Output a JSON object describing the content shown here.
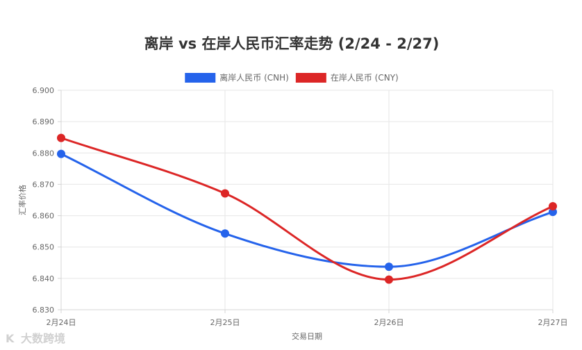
{
  "chart_data": {
    "type": "line",
    "title": "离岸 vs 在岸人民币汇率走势 (2/24 - 2/27)",
    "xlabel": "交易日期",
    "ylabel": "汇率价格",
    "categories": [
      "2月24日",
      "2月25日",
      "2月26日",
      "2月27日"
    ],
    "ylim": [
      6.83,
      6.9
    ],
    "yticks": [
      "6.830",
      "6.840",
      "6.850",
      "6.860",
      "6.870",
      "6.880",
      "6.890",
      "6.900"
    ],
    "grid": true,
    "legend_position": "top",
    "series": [
      {
        "name": "离岸人民币 (CNH)",
        "color": "#2563eb",
        "values": [
          6.8797,
          6.8543,
          6.8437,
          6.8612
        ]
      },
      {
        "name": "在岸人民币 (CNY)",
        "color": "#dc2626",
        "values": [
          6.8848,
          6.8671,
          6.8396,
          6.863
        ]
      }
    ]
  },
  "watermark": {
    "logo_text": "K",
    "text": "大数跨境"
  }
}
